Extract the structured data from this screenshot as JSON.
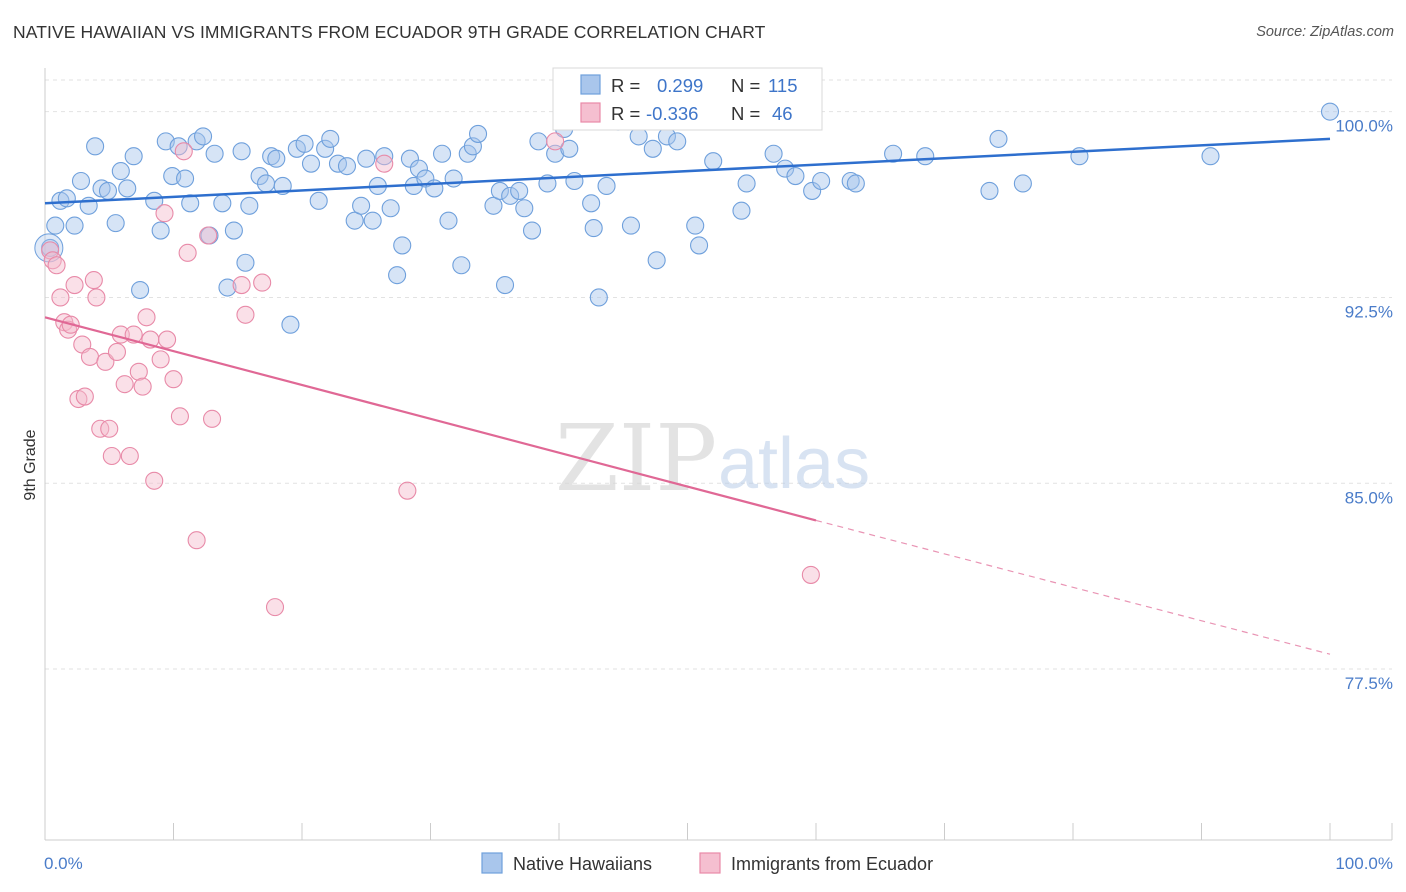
{
  "title": "NATIVE HAWAIIAN VS IMMIGRANTS FROM ECUADOR 9TH GRADE CORRELATION CHART",
  "source": "Source: ZipAtlas.com",
  "colors": {
    "blue": "#6fa0dc",
    "blue_fill": "rgba(165,196,236,0.45)",
    "blue_line": "#2e6fce",
    "pink": "#e88aa8",
    "pink_fill": "rgba(244,186,205,0.45)",
    "pink_line": "#e06895",
    "axis_label": "#4a7cc9",
    "grid": "#e2e2e2"
  },
  "legend": {
    "r_label": "R =",
    "n_label": "N =",
    "rows": [
      {
        "r": "0.299",
        "n": "115"
      },
      {
        "r": "-0.336",
        "n": "46"
      }
    ]
  },
  "watermark": {
    "zip": "ZIP",
    "atlas": "atlas"
  },
  "chart_data": {
    "type": "scatter",
    "title": "NATIVE HAWAIIAN VS IMMIGRANTS FROM ECUADOR 9TH GRADE CORRELATION CHART",
    "xlabel": "",
    "ylabel": "9th Grade",
    "xlim": [
      0,
      100
    ],
    "ylim": [
      70.6,
      101.6
    ],
    "x_ticks": [
      "0.0%",
      "100.0%"
    ],
    "y_ticks": [
      {
        "value": 100.0,
        "label": "100.0%"
      },
      {
        "value": 92.5,
        "label": "92.5%"
      },
      {
        "value": 85.0,
        "label": "85.0%"
      },
      {
        "value": 77.5,
        "label": "77.5%"
      }
    ],
    "grid": true,
    "legend_position": "top-center",
    "series": [
      {
        "name": "Native Hawaiians",
        "r": 0.299,
        "n": 115,
        "trend": {
          "x0": 0,
          "y0": 96.3,
          "x1": 100,
          "y1": 98.9
        },
        "points": [
          [
            0.4,
            94.5
          ],
          [
            0.8,
            95.4
          ],
          [
            1.2,
            96.4
          ],
          [
            1.7,
            96.5
          ],
          [
            2.3,
            95.4
          ],
          [
            2.8,
            97.2
          ],
          [
            3.4,
            96.2
          ],
          [
            3.9,
            98.6
          ],
          [
            4.4,
            96.9
          ],
          [
            4.9,
            96.8
          ],
          [
            5.5,
            95.5
          ],
          [
            5.9,
            97.6
          ],
          [
            6.4,
            96.9
          ],
          [
            6.9,
            98.2
          ],
          [
            7.4,
            92.8
          ],
          [
            8.5,
            96.4
          ],
          [
            9.0,
            95.2
          ],
          [
            9.4,
            98.8
          ],
          [
            9.9,
            97.4
          ],
          [
            10.4,
            98.6
          ],
          [
            10.9,
            97.3
          ],
          [
            11.3,
            96.3
          ],
          [
            11.8,
            98.8
          ],
          [
            12.3,
            99.0
          ],
          [
            12.8,
            95.0
          ],
          [
            13.2,
            98.3
          ],
          [
            13.8,
            96.3
          ],
          [
            14.2,
            92.9
          ],
          [
            14.7,
            95.2
          ],
          [
            15.3,
            98.4
          ],
          [
            15.6,
            93.9
          ],
          [
            15.9,
            96.2
          ],
          [
            16.7,
            97.4
          ],
          [
            17.2,
            97.1
          ],
          [
            17.6,
            98.2
          ],
          [
            18.0,
            98.1
          ],
          [
            18.5,
            97.0
          ],
          [
            19.1,
            91.4
          ],
          [
            19.6,
            98.5
          ],
          [
            20.2,
            98.7
          ],
          [
            20.7,
            97.9
          ],
          [
            21.3,
            96.4
          ],
          [
            21.8,
            98.5
          ],
          [
            22.2,
            98.9
          ],
          [
            22.8,
            97.9
          ],
          [
            23.5,
            97.8
          ],
          [
            24.1,
            95.6
          ],
          [
            24.6,
            96.2
          ],
          [
            25.0,
            98.1
          ],
          [
            25.5,
            95.6
          ],
          [
            25.9,
            97.0
          ],
          [
            26.4,
            98.2
          ],
          [
            26.9,
            96.1
          ],
          [
            27.4,
            93.4
          ],
          [
            27.8,
            94.6
          ],
          [
            28.4,
            98.1
          ],
          [
            28.7,
            97.0
          ],
          [
            29.1,
            97.7
          ],
          [
            29.6,
            97.3
          ],
          [
            30.3,
            96.9
          ],
          [
            30.9,
            98.3
          ],
          [
            31.4,
            95.6
          ],
          [
            31.8,
            97.3
          ],
          [
            32.4,
            93.8
          ],
          [
            32.9,
            98.3
          ],
          [
            33.3,
            98.6
          ],
          [
            33.7,
            99.1
          ],
          [
            34.9,
            96.2
          ],
          [
            35.4,
            96.8
          ],
          [
            35.8,
            93.0
          ],
          [
            36.2,
            96.6
          ],
          [
            36.9,
            96.8
          ],
          [
            37.3,
            96.1
          ],
          [
            37.9,
            95.2
          ],
          [
            38.4,
            98.8
          ],
          [
            39.1,
            97.1
          ],
          [
            39.7,
            98.3
          ],
          [
            40.4,
            99.3
          ],
          [
            40.8,
            98.5
          ],
          [
            41.2,
            97.2
          ],
          [
            41.8,
            100.1
          ],
          [
            42.5,
            96.3
          ],
          [
            42.7,
            95.3
          ],
          [
            43.1,
            92.5
          ],
          [
            43.7,
            97.0
          ],
          [
            44.6,
            99.6
          ],
          [
            44.9,
            100.0
          ],
          [
            45.6,
            95.4
          ],
          [
            46.2,
            99.0
          ],
          [
            47.3,
            98.5
          ],
          [
            47.6,
            94.0
          ],
          [
            48.4,
            99.0
          ],
          [
            49.2,
            98.8
          ],
          [
            50.6,
            95.4
          ],
          [
            50.9,
            94.6
          ],
          [
            52.0,
            98.0
          ],
          [
            52.4,
            100.0
          ],
          [
            54.2,
            96.0
          ],
          [
            54.6,
            97.1
          ],
          [
            56.7,
            98.3
          ],
          [
            57.6,
            97.7
          ],
          [
            58.1,
            100.1
          ],
          [
            58.4,
            97.4
          ],
          [
            59.7,
            96.8
          ],
          [
            60.4,
            97.2
          ],
          [
            62.7,
            97.2
          ],
          [
            63.1,
            97.1
          ],
          [
            66.0,
            98.3
          ],
          [
            68.5,
            98.2
          ],
          [
            73.5,
            96.8
          ],
          [
            74.2,
            98.9
          ],
          [
            76.1,
            97.1
          ],
          [
            80.5,
            98.2
          ],
          [
            90.7,
            98.2
          ],
          [
            100.0,
            100.0
          ]
        ]
      },
      {
        "name": "Immigrants from Ecuador",
        "r": -0.336,
        "n": 46,
        "trend": {
          "x0": 0,
          "y0": 91.7,
          "x1": 60,
          "y1": 83.5,
          "dashed_to": {
            "x": 100,
            "y": 78.1
          }
        },
        "points": [
          [
            0.4,
            94.4
          ],
          [
            0.6,
            94.0
          ],
          [
            0.9,
            93.8
          ],
          [
            1.2,
            92.5
          ],
          [
            1.5,
            91.5
          ],
          [
            1.8,
            91.2
          ],
          [
            2.0,
            91.4
          ],
          [
            2.3,
            93.0
          ],
          [
            2.6,
            88.4
          ],
          [
            2.9,
            90.6
          ],
          [
            3.1,
            88.5
          ],
          [
            3.5,
            90.1
          ],
          [
            3.8,
            93.2
          ],
          [
            4.0,
            92.5
          ],
          [
            4.3,
            87.2
          ],
          [
            4.7,
            89.9
          ],
          [
            5.0,
            87.2
          ],
          [
            5.2,
            86.1
          ],
          [
            5.6,
            90.3
          ],
          [
            5.9,
            91.0
          ],
          [
            6.2,
            89.0
          ],
          [
            6.6,
            86.1
          ],
          [
            6.9,
            91.0
          ],
          [
            7.3,
            89.5
          ],
          [
            7.6,
            88.9
          ],
          [
            7.9,
            91.7
          ],
          [
            8.2,
            90.8
          ],
          [
            8.5,
            85.1
          ],
          [
            9.0,
            90.0
          ],
          [
            9.3,
            95.9
          ],
          [
            9.5,
            90.8
          ],
          [
            10.0,
            89.2
          ],
          [
            10.5,
            87.7
          ],
          [
            10.8,
            98.4
          ],
          [
            11.1,
            94.3
          ],
          [
            11.8,
            82.7
          ],
          [
            12.7,
            95.0
          ],
          [
            13.0,
            87.6
          ],
          [
            15.3,
            93.0
          ],
          [
            15.6,
            91.8
          ],
          [
            16.9,
            93.1
          ],
          [
            17.9,
            80.0
          ],
          [
            26.4,
            97.9
          ],
          [
            28.2,
            84.7
          ],
          [
            39.7,
            98.8
          ],
          [
            59.6,
            81.3
          ]
        ]
      }
    ]
  },
  "bottom_legend": [
    "Native Hawaiians",
    "Immigrants from Ecuador"
  ]
}
